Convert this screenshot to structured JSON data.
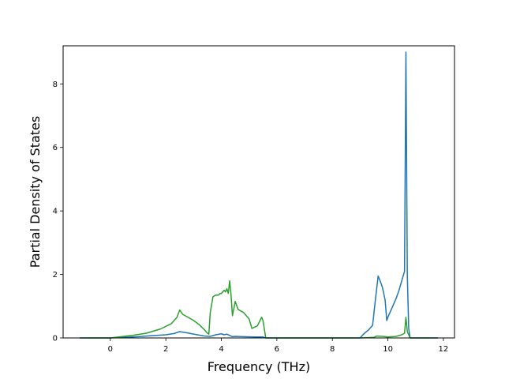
{
  "chart_data": {
    "type": "line",
    "xlabel": "Frequency (THz)",
    "ylabel": "Partial Density of States",
    "xlim": [
      -1.7,
      12.4
    ],
    "ylim": [
      0,
      9.2
    ],
    "xticks": [
      0,
      2,
      4,
      6,
      8,
      10,
      12
    ],
    "yticks": [
      0,
      2,
      4,
      6,
      8
    ],
    "grid": false,
    "series": [
      {
        "color": "#1f77b4",
        "x": [
          -1.1,
          0.0,
          0.5,
          1.0,
          1.5,
          2.0,
          2.3,
          2.5,
          2.7,
          3.0,
          3.4,
          3.6,
          3.8,
          4.0,
          4.1,
          4.2,
          4.3,
          4.4,
          4.5,
          4.8,
          5.2,
          5.5,
          5.6,
          6.0,
          7.0,
          8.0,
          9.0,
          9.1,
          9.2,
          9.3,
          9.45,
          9.55,
          9.65,
          9.72,
          9.8,
          9.9,
          9.96,
          10.0,
          10.1,
          10.2,
          10.3,
          10.4,
          10.5,
          10.6,
          10.65,
          10.7,
          10.75,
          10.8,
          11.0,
          11.8
        ],
        "y": [
          0.0,
          0.0,
          0.02,
          0.04,
          0.07,
          0.1,
          0.14,
          0.2,
          0.17,
          0.12,
          0.06,
          0.05,
          0.1,
          0.13,
          0.1,
          0.12,
          0.08,
          0.04,
          0.05,
          0.04,
          0.03,
          0.03,
          0.0,
          0.0,
          0.0,
          0.0,
          0.0,
          0.1,
          0.18,
          0.25,
          0.4,
          1.2,
          1.95,
          1.8,
          1.6,
          1.2,
          0.55,
          0.65,
          0.85,
          1.05,
          1.25,
          1.5,
          1.8,
          2.1,
          9.0,
          2.0,
          0.3,
          0.0,
          0.0,
          0.0
        ]
      },
      {
        "color": "#2ca02c",
        "x": [
          -1.1,
          0.0,
          0.3,
          0.8,
          1.3,
          1.8,
          2.2,
          2.4,
          2.5,
          2.6,
          2.8,
          3.0,
          3.2,
          3.4,
          3.5,
          3.55,
          3.6,
          3.7,
          3.8,
          3.9,
          3.95,
          4.0,
          4.1,
          4.15,
          4.2,
          4.25,
          4.3,
          4.35,
          4.4,
          4.5,
          4.6,
          4.8,
          5.0,
          5.1,
          5.3,
          5.45,
          5.5,
          5.6,
          6.0,
          7.0,
          8.0,
          9.0,
          9.5,
          9.6,
          9.8,
          10.0,
          10.3,
          10.5,
          10.6,
          10.65,
          10.7,
          10.8,
          11.8
        ],
        "y": [
          0.0,
          0.0,
          0.03,
          0.08,
          0.15,
          0.28,
          0.45,
          0.65,
          0.88,
          0.75,
          0.65,
          0.55,
          0.42,
          0.25,
          0.15,
          0.12,
          0.8,
          1.3,
          1.35,
          1.35,
          1.4,
          1.4,
          1.5,
          1.45,
          1.55,
          1.4,
          1.8,
          1.35,
          0.7,
          1.15,
          0.9,
          0.8,
          0.6,
          0.3,
          0.38,
          0.65,
          0.55,
          0.0,
          0.0,
          0.0,
          0.0,
          0.0,
          0.02,
          0.06,
          0.05,
          0.03,
          0.05,
          0.1,
          0.15,
          0.65,
          0.2,
          0.0,
          0.0
        ]
      }
    ]
  }
}
